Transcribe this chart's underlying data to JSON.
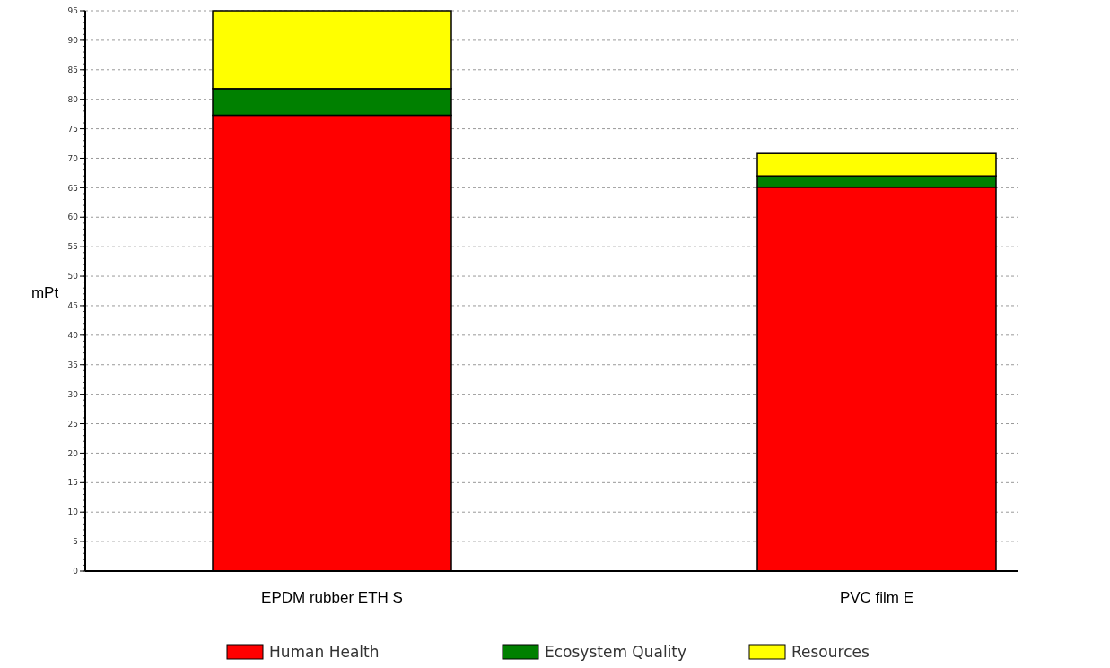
{
  "chart_data": {
    "type": "bar",
    "stacked": true,
    "ylabel": "mPt",
    "categories": [
      "EPDM rubber ETH S",
      "PVC film E"
    ],
    "series": [
      {
        "name": "Human Health",
        "color": "#ff0000",
        "values": [
          77.3,
          65.1
        ]
      },
      {
        "name": "Ecosystem Quality",
        "color": "#008000",
        "values": [
          4.5,
          1.9
        ]
      },
      {
        "name": "Resources",
        "color": "#ffff00",
        "values": [
          13.2,
          3.8
        ]
      }
    ],
    "ylim": [
      0,
      95
    ],
    "yticks": [
      0,
      5,
      10,
      15,
      20,
      25,
      30,
      35,
      40,
      45,
      50,
      55,
      60,
      65,
      70,
      75,
      80,
      85,
      90,
      95
    ],
    "grid": "y",
    "legend": "bottom"
  }
}
